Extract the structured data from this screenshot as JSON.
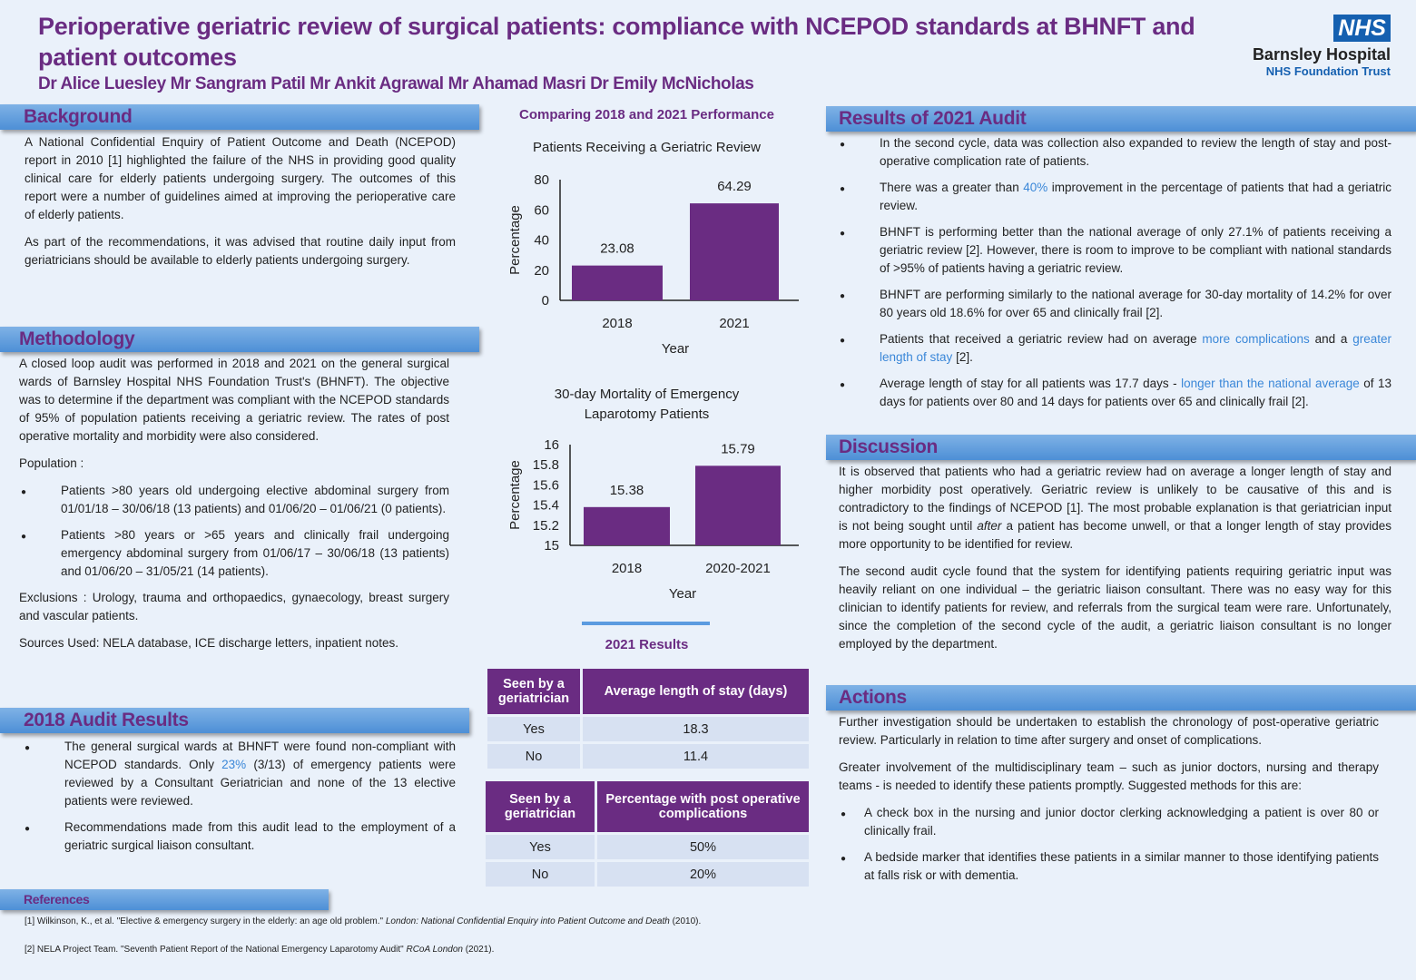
{
  "header": {
    "title": "Perioperative geriatric review of surgical patients: compliance with NCEPOD standards at BHNFT and patient outcomes",
    "authors": "Dr Alice Luesley Mr Sangram Patil Mr Ankit Agrawal Mr Ahamad Masri Dr Emily McNicholas",
    "logo": {
      "nhs": "NHS",
      "hospital": "Barnsley Hospital",
      "trust": "NHS Foundation Trust"
    }
  },
  "background": {
    "heading": "Background",
    "p1": "A National Confidential Enquiry of Patient Outcome and Death (NCEPOD) report in 2010 [1] highlighted the failure of the NHS in providing good quality clinical care for elderly patients undergoing surgery. The outcomes of this report were a number of guidelines aimed at improving the perioperative care of elderly patients.",
    "p2": "As part of the recommendations, it was advised that routine daily input from geriatricians should be available to elderly patients undergoing surgery."
  },
  "methodology": {
    "heading": "Methodology",
    "p1": "A closed loop audit was performed in 2018 and 2021 on the general surgical wards of Barnsley Hospital NHS Foundation Trust's (BHNFT). The objective was to determine if the department was compliant with the NCEPOD standards of 95% of population patients receiving a geriatric review. The rates of post operative mortality and morbidity were also considered.",
    "population": "Population :",
    "bullets": [
      "Patients >80 years old undergoing elective abdominal surgery from 01/01/18 – 30/06/18 (13 patients) and 01/06/20 – 01/06/21 (0 patients).",
      "Patients >80 years or >65 years and clinically frail undergoing emergency abdominal surgery from 01/06/17 – 30/06/18 (13 patients) and 01/06/20 – 31/05/21 (14 patients)."
    ],
    "exclusions": "Exclusions : Urology, trauma and orthopaedics, gynaecology, breast surgery and vascular patients.",
    "sources": "Sources Used: NELA database, ICE discharge letters, inpatient notes."
  },
  "audit2018": {
    "heading": "2018 Audit Results",
    "b1_pre": "The general surgical wards at BHNFT were found non-compliant with NCEPOD standards. Only ",
    "b1_hl": "23%",
    "b1_post": " (3/13) of emergency patients were reviewed by a Consultant Geriatrician and none of the 13 elective patients were reviewed.",
    "b2": "Recommendations made from this audit lead to the employment of a geriatric surgical liaison consultant."
  },
  "references": {
    "heading": "References",
    "r1_pre": "[1] Wilkinson, K., et al. \"Elective & emergency surgery in the elderly: an age old problem.\" ",
    "r1_it": "London: National Confidential Enquiry into Patient Outcome and Death",
    "r1_post": " (2010).",
    "r2_pre": "[2] NELA Project Team. \"Seventh Patient Report of the National Emergency Laparotomy Audit\" ",
    "r2_it": "RCoA London",
    "r2_post": " (2021)."
  },
  "middle": {
    "heading": "Comparing 2018 and 2021 Performance",
    "results_heading": "2021 Results"
  },
  "chart_data": [
    {
      "type": "bar",
      "title": "Patients Receiving a Geriatric Review",
      "categories": [
        "2018",
        "2021"
      ],
      "values": [
        23.08,
        64.29
      ],
      "xlabel": "Year",
      "ylabel": "Percentage",
      "ylim": [
        0,
        80
      ],
      "yticks": [
        "0",
        "20",
        "40",
        "60",
        "80"
      ],
      "color": "#6a2c82",
      "grid": false
    },
    {
      "type": "bar",
      "title_l1": "30-day Mortality of Emergency",
      "title_l2": "Laparotomy Patients",
      "categories": [
        "2018",
        "2020-2021"
      ],
      "values": [
        15.38,
        15.79
      ],
      "xlabel": "Year",
      "ylabel": "Percentage",
      "ylim": [
        15,
        16
      ],
      "yticks": [
        "15",
        "15.2",
        "15.4",
        "15.6",
        "15.8",
        "16"
      ],
      "color": "#6a2c82",
      "grid": false
    }
  ],
  "table1": {
    "headers": [
      "Seen by a geriatrician",
      "Average length of stay  (days)"
    ],
    "rows": [
      [
        "Yes",
        "18.3"
      ],
      [
        "No",
        "11.4"
      ]
    ]
  },
  "table2": {
    "headers": [
      "Seen by a geriatrician",
      "Percentage with post operative complications"
    ],
    "rows": [
      [
        "Yes",
        "50%"
      ],
      [
        "No",
        "20%"
      ]
    ]
  },
  "results2021": {
    "heading": "Results of 2021 Audit",
    "b1": "In the second cycle, data was collection also expanded to review the length of stay and post-operative complication rate of patients.",
    "b2_pre": "There was a greater than ",
    "b2_hl": "40%",
    "b2_post": " improvement in the percentage of patients that had a geriatric review.",
    "b3": "BHNFT is performing better than the national average of only 27.1% of patients receiving a geriatric review [2]. However, there is room to improve to be compliant with national standards of >95% of patients having a geriatric review.",
    "b4": "BHNFT are performing similarly to the national average for 30-day mortality of 14.2% for over 80 years old 18.6% for over 65 and clinically frail [2].",
    "b5_pre": "Patients that received a geriatric review had on average ",
    "b5_hl1": "more complications",
    "b5_mid": " and a ",
    "b5_hl2": "greater length of stay",
    "b5_post": " [2].",
    "b6_pre": "Average length of stay for all patients was 17.7 days - ",
    "b6_hl": "longer than the national average",
    "b6_post": " of 13 days for patients over 80 and 14 days for patients over 65 and clinically frail [2]."
  },
  "discussion": {
    "heading": "Discussion",
    "p1_pre": "It is observed that patients who had a geriatric review had on average a longer length of stay and higher morbidity post operatively. Geriatric review is unlikely to be causative of this and is contradictory to the findings of NCEPOD [1]. The most probable explanation is that geriatrician input is not being sought until ",
    "p1_it": "after",
    "p1_post": " a patient has become unwell, or that a longer length of stay provides more opportunity to be identified for review.",
    "p2": "The second audit cycle found that the system for identifying patients requiring geriatric input was heavily reliant on one individual – the geriatric liaison consultant. There was no easy way for this clinician to identify patients for review, and referrals from the surgical team were rare.  Unfortunately, since the completion of the second cycle of the audit, a geriatric liaison consultant is no longer employed by the department."
  },
  "actions": {
    "heading": "Actions",
    "p1": "Further investigation should be undertaken to establish the chronology of post-operative geriatric review. Particularly in relation to time after surgery and onset of complications.",
    "p2": "Greater involvement of the multidisciplinary team – such as junior doctors, nursing and therapy teams -  is needed to identify these patients promptly.  Suggested methods for this are:",
    "bullets": [
      "A check box in the nursing and junior doctor clerking acknowledging a patient is over 80 or clinically frail.",
      "A bedside marker that identifies these patients in a similar manner to those identifying patients at falls risk or with dementia."
    ]
  }
}
